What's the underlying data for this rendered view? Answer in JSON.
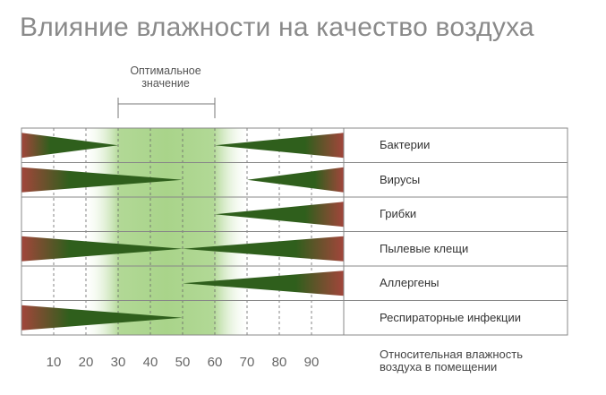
{
  "title": "Влияние влажности на качество воздуха",
  "optimal_label_line1": "Оптимальное",
  "optimal_label_line2": "значение",
  "axis_title_line1": "Относительная влажность",
  "axis_title_line2": "воздуха в помещении",
  "colors": {
    "wedge_dark": "#2f5f1c",
    "wedge_red": "#a2453b",
    "optimal_green": "#a9d48a",
    "frame": "#888888"
  },
  "chart_data": {
    "type": "range-bar",
    "x_ticks": [
      10,
      20,
      30,
      40,
      50,
      60,
      70,
      80,
      90
    ],
    "xlim": [
      0,
      100
    ],
    "optimal_range": [
      30,
      60
    ],
    "rows": [
      {
        "label": "Бактерии",
        "low_range": [
          0,
          30
        ],
        "high_range": [
          60,
          100
        ]
      },
      {
        "label": "Вирусы",
        "low_range": [
          0,
          50
        ],
        "high_range": [
          70,
          100
        ]
      },
      {
        "label": "Грибки",
        "low_range": null,
        "high_range": [
          60,
          100
        ]
      },
      {
        "label": "Пылевые клещи",
        "low_range": [
          0,
          50
        ],
        "high_range": [
          50,
          100
        ]
      },
      {
        "label": "Аллергены",
        "low_range": null,
        "high_range": [
          50,
          100
        ]
      },
      {
        "label": "Респираторные инфекции",
        "low_range": [
          0,
          50
        ],
        "high_range": null
      }
    ]
  }
}
